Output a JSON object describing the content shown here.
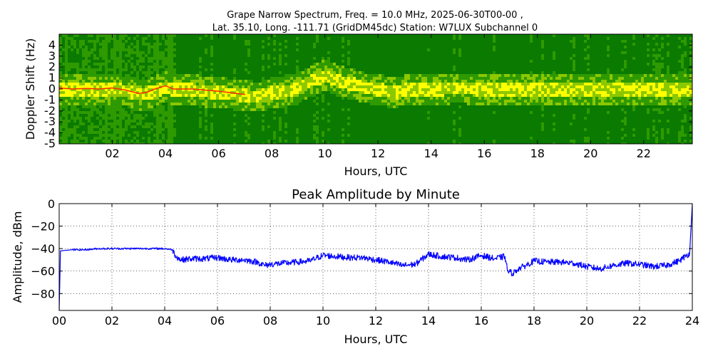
{
  "chart_data": [
    {
      "type": "heatmap",
      "title_line1": "Grape Narrow Spectrum, Freq. = 10.0 MHz, 2025-06-30T00-00 ,",
      "title_line2": "Lat.  35.10, Long. -111.71 (GridDM45dc) Station: W7LUX Subchannel 0",
      "xlabel": "Hours, UTC",
      "ylabel": "Doppler Shift (Hz)",
      "xlim": [
        0,
        23.83
      ],
      "ylim": [
        -5,
        5
      ],
      "xtick_values": [
        2,
        4,
        6,
        8,
        10,
        12,
        14,
        16,
        18,
        20,
        22
      ],
      "xticks": [
        "02",
        "04",
        "06",
        "08",
        "10",
        "12",
        "14",
        "16",
        "18",
        "20",
        "22"
      ],
      "ytick_values": [
        4,
        3,
        2,
        1,
        0,
        -1,
        -2,
        -3,
        -4,
        -5
      ],
      "yticks": [
        "4",
        "3",
        "2",
        "1",
        "0",
        "-1",
        "-2",
        "-3",
        "-4",
        "-5"
      ],
      "colormap": [
        "#0a7a00",
        "#2e9a00",
        "#8cc800",
        "#ffff00",
        "#ff2a00"
      ],
      "carrier_trace": {
        "x": [
          0,
          0.5,
          1,
          1.5,
          2,
          2.5,
          3,
          3.3,
          3.6,
          4,
          4.3,
          4.6,
          5,
          6,
          7,
          7.5,
          8,
          8.5,
          9,
          9.5,
          10,
          10.5,
          11,
          11.5,
          12,
          12.5,
          13,
          14,
          15,
          16,
          17,
          18,
          19,
          20,
          21,
          22,
          23,
          23.83
        ],
        "y": [
          0.1,
          0.0,
          0.05,
          0.0,
          0.1,
          -0.1,
          -0.4,
          -0.3,
          0.0,
          0.3,
          0.0,
          0.0,
          0.0,
          -0.2,
          -0.5,
          -0.6,
          -0.2,
          -0.1,
          0.3,
          0.9,
          1.4,
          0.8,
          0.6,
          0.2,
          0.1,
          -0.2,
          0.0,
          0.1,
          0.2,
          0.1,
          0.1,
          0.1,
          0.1,
          0.1,
          0.1,
          0.1,
          0.1,
          0.1
        ]
      }
    },
    {
      "type": "line",
      "title": "Peak Amplitude by Minute",
      "xlabel": "Hours, UTC",
      "ylabel": "Amplitude, dBm",
      "xlim": [
        0,
        24
      ],
      "ylim": [
        -95,
        0
      ],
      "grid": true,
      "xtick_values": [
        0,
        2,
        4,
        6,
        8,
        10,
        12,
        14,
        16,
        18,
        20,
        22,
        24
      ],
      "xticks": [
        "00",
        "02",
        "04",
        "06",
        "08",
        "10",
        "12",
        "14",
        "16",
        "18",
        "20",
        "22",
        "24"
      ],
      "ytick_values": [
        0,
        -20,
        -40,
        -60,
        -80
      ],
      "yticks": [
        "0",
        "−20",
        "−40",
        "−60",
        "−80"
      ],
      "line_color": "#0000ff",
      "series": [
        {
          "x": [
            0,
            0.05,
            0.5,
            1,
            1.5,
            2,
            2.5,
            3,
            3.5,
            4,
            4.3,
            4.4,
            4.6,
            5,
            5.5,
            6,
            6.5,
            7,
            7.5,
            7.8,
            8,
            8.5,
            9,
            9.5,
            10,
            10.5,
            11,
            11.5,
            12,
            12.5,
            13,
            13.5,
            14,
            14.5,
            15,
            15.5,
            16,
            16.5,
            16.9,
            17,
            17.2,
            17.4,
            17.6,
            18,
            18.5,
            19,
            19.5,
            20,
            20.5,
            21,
            21.5,
            22,
            22.5,
            23,
            23.5,
            23.9,
            24
          ],
          "y": [
            -95,
            -42,
            -41,
            -41,
            -40,
            -40,
            -40,
            -40,
            -40,
            -40,
            -41,
            -46,
            -50,
            -49,
            -49,
            -48,
            -50,
            -50,
            -52,
            -55,
            -54,
            -53,
            -52,
            -51,
            -46,
            -47,
            -48,
            -48,
            -50,
            -52,
            -55,
            -54,
            -45,
            -47,
            -48,
            -50,
            -46,
            -49,
            -47,
            -60,
            -62,
            -58,
            -56,
            -51,
            -52,
            -52,
            -53,
            -56,
            -58,
            -55,
            -53,
            -54,
            -56,
            -55,
            -51,
            -44,
            0
          ]
        }
      ]
    }
  ]
}
